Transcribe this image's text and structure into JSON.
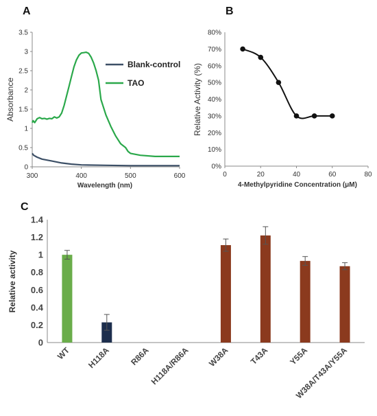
{
  "panels": {
    "a": "A",
    "b": "B",
    "c": "C"
  },
  "chart_data": [
    {
      "type": "line",
      "panel": "A",
      "xlabel": "Wavelength (nm)",
      "ylabel": "Absorbance",
      "xlim": [
        300,
        600
      ],
      "ylim": [
        0,
        3.5
      ],
      "xticks": [
        "300",
        "400",
        "500",
        "600"
      ],
      "yticks": [
        "0",
        "0.5",
        "1",
        "1.5",
        "2",
        "2.5",
        "3",
        "3.5"
      ],
      "legend_position": "right",
      "series": [
        {
          "name": "Blank-control",
          "color": "#3c4f66",
          "x": [
            300,
            303,
            310,
            320,
            340,
            360,
            380,
            400,
            450,
            500,
            550,
            600
          ],
          "y": [
            0.35,
            0.3,
            0.25,
            0.2,
            0.15,
            0.1,
            0.07,
            0.05,
            0.04,
            0.03,
            0.03,
            0.03
          ]
        },
        {
          "name": "TAO",
          "color": "#2aa84a",
          "x": [
            300,
            302,
            305,
            310,
            315,
            320,
            325,
            330,
            335,
            340,
            345,
            350,
            355,
            360,
            365,
            370,
            375,
            380,
            385,
            390,
            395,
            400,
            405,
            410,
            415,
            420,
            425,
            430,
            435,
            440,
            445,
            450,
            460,
            470,
            480,
            490,
            495,
            500,
            520,
            550,
            580,
            600
          ],
          "y": [
            1.15,
            1.2,
            1.15,
            1.25,
            1.28,
            1.25,
            1.26,
            1.24,
            1.26,
            1.25,
            1.3,
            1.27,
            1.3,
            1.4,
            1.6,
            1.85,
            2.1,
            2.35,
            2.6,
            2.78,
            2.9,
            2.96,
            2.97,
            2.98,
            2.95,
            2.85,
            2.7,
            2.5,
            2.25,
            1.75,
            1.55,
            1.35,
            1.05,
            0.8,
            0.6,
            0.5,
            0.4,
            0.35,
            0.3,
            0.27,
            0.27,
            0.27
          ]
        }
      ]
    },
    {
      "type": "line",
      "panel": "B",
      "xlabel": "4-Methylpyridine Concentration   (μM)",
      "ylabel": "Relative Activity (%)",
      "xlim": [
        0,
        80
      ],
      "ylim": [
        0,
        80
      ],
      "xticks": [
        "0",
        "20",
        "40",
        "60",
        "80"
      ],
      "yticks": [
        "0%",
        "10%",
        "20%",
        "30%",
        "40%",
        "50%",
        "60%",
        "70%",
        "80%"
      ],
      "series": [
        {
          "color": "#111111",
          "x": [
            10,
            20,
            30,
            40,
            50,
            60
          ],
          "y": [
            70,
            65,
            50,
            30,
            30,
            30
          ]
        }
      ]
    },
    {
      "type": "bar",
      "panel": "C",
      "ylabel": "Relative activity",
      "ylim": [
        0,
        1.4
      ],
      "yticks": [
        "0",
        "0.2",
        "0.4",
        "0.6",
        "0.8",
        "1",
        "1.2",
        "1.4"
      ],
      "categories": [
        "WT",
        "H118A",
        "R86A",
        "H118A/R86A",
        "W38A",
        "T43A",
        "Y55A",
        "W38A/T43A/Y55A"
      ],
      "values": [
        1.0,
        0.23,
        0,
        0,
        1.11,
        1.22,
        0.93,
        0.87
      ],
      "errors": [
        0.05,
        0.09,
        0,
        0,
        0.07,
        0.1,
        0.05,
        0.04
      ],
      "colors": [
        "#6aad4a",
        "#1d2e4d",
        "#8b3a1e",
        "#8b3a1e",
        "#8b3a1e",
        "#8b3a1e",
        "#8b3a1e",
        "#8b3a1e"
      ]
    }
  ]
}
